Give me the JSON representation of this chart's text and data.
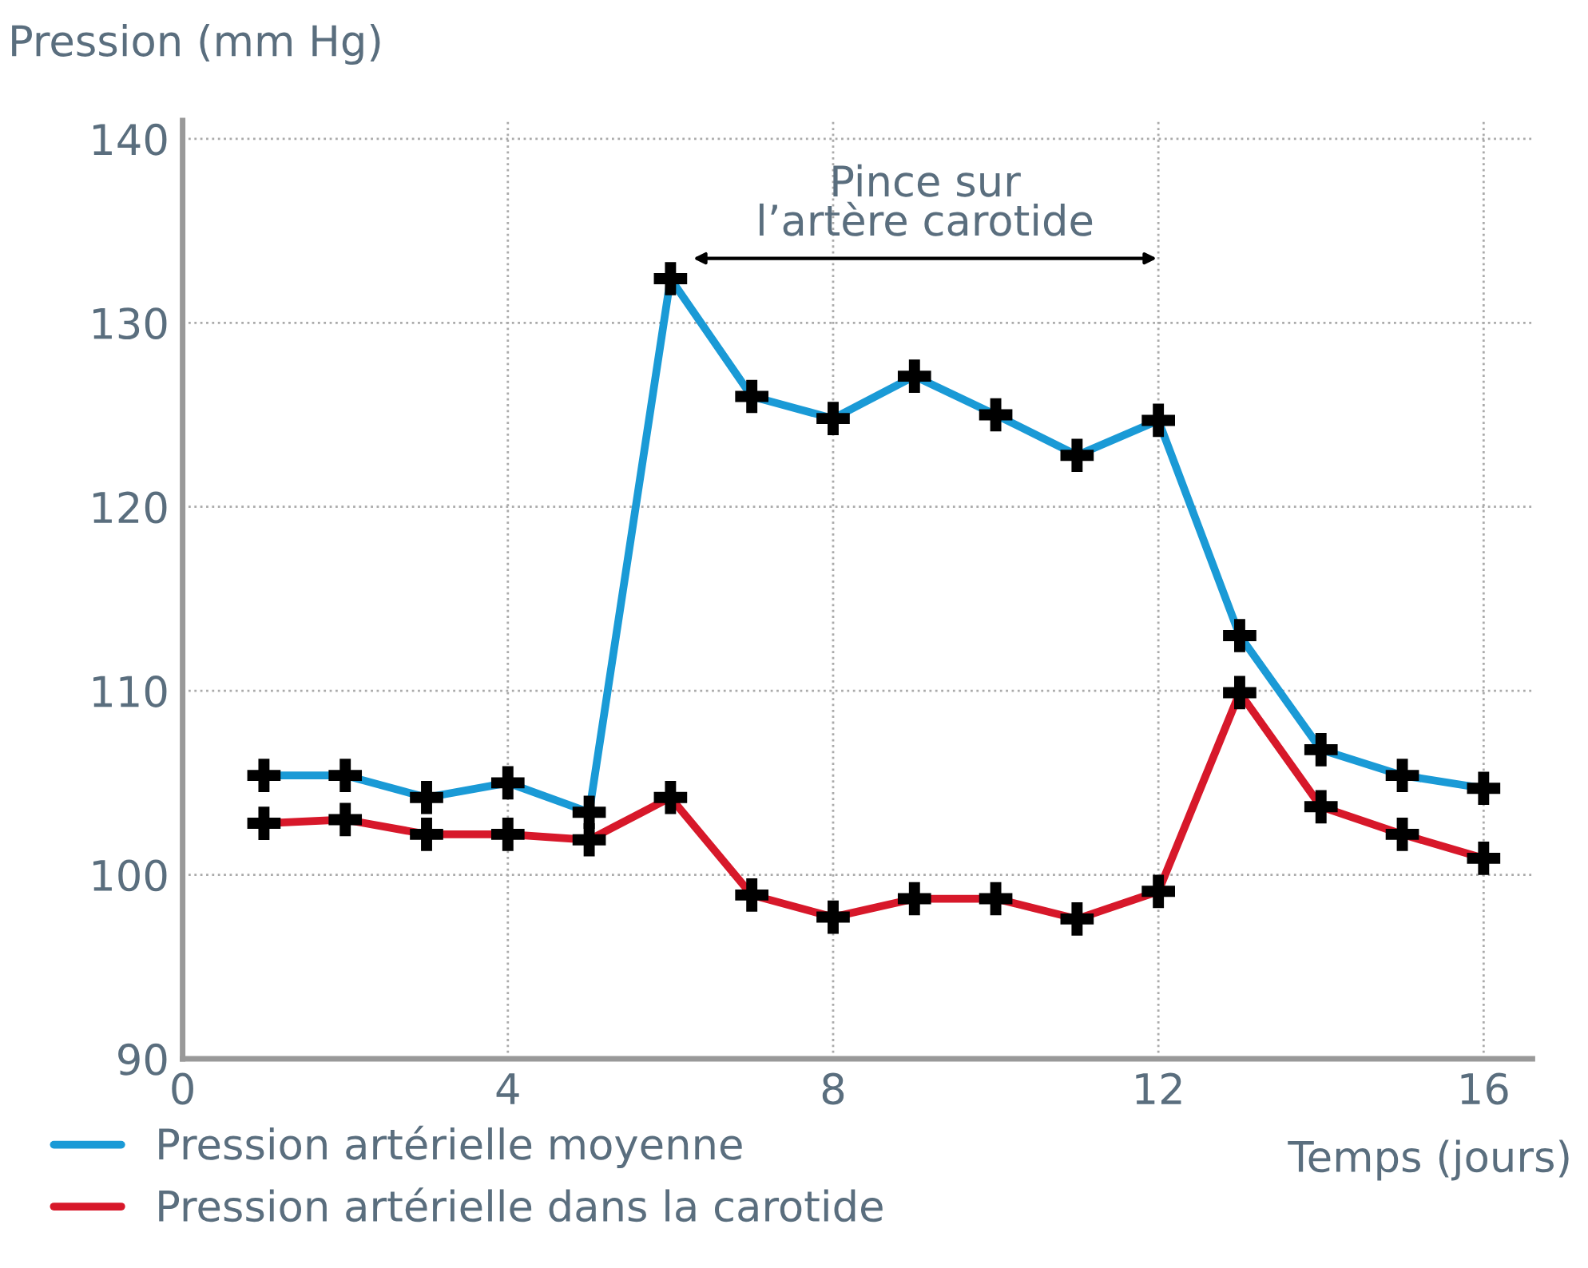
{
  "chart_data": {
    "type": "line",
    "xlabel": "Temps (jours)",
    "ylabel": "Pression (mm Hg)",
    "x": [
      1,
      2,
      3,
      4,
      5,
      6,
      7,
      8,
      9,
      10,
      11,
      12,
      13,
      14,
      15,
      16
    ],
    "series": [
      {
        "name": "Pression artérielle moyenne",
        "color": "#1a9ad6",
        "values": [
          105.4,
          105.4,
          104.2,
          105.0,
          103.4,
          132.4,
          126.0,
          124.8,
          127.1,
          125.0,
          122.8,
          124.7,
          113.0,
          106.8,
          105.4,
          104.7
        ]
      },
      {
        "name": "Pression artérielle dans la carotide",
        "color": "#d7182a",
        "values": [
          102.8,
          103.0,
          102.2,
          102.2,
          101.9,
          104.2,
          98.9,
          97.7,
          98.7,
          98.7,
          97.6,
          99.1,
          109.9,
          103.7,
          102.2,
          100.9
        ]
      }
    ],
    "xlim": [
      0,
      16.6
    ],
    "ylim": [
      90,
      141
    ],
    "xticks": [
      0,
      4,
      8,
      12,
      16
    ],
    "yticks": [
      90,
      100,
      110,
      120,
      130,
      140
    ],
    "annotations": [
      "Pince sur\nl’artère carotide"
    ],
    "grid": true,
    "marker": "cross",
    "line_style": "solid",
    "legend": "bottom left"
  }
}
